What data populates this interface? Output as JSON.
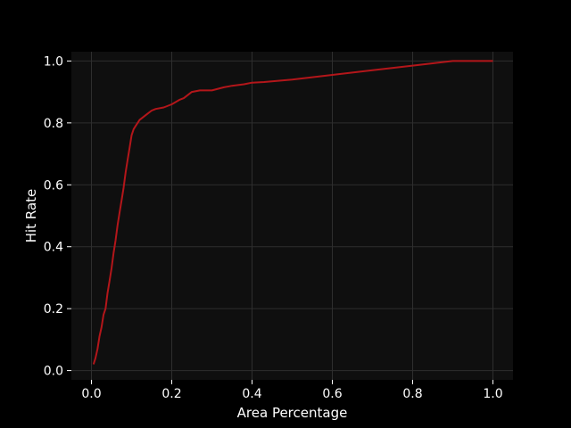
{
  "chart_data": {
    "type": "line",
    "title": "",
    "xlabel": "Area Percentage",
    "ylabel": "Hit Rate",
    "xlim": [
      -0.05,
      1.05
    ],
    "ylim": [
      -0.03,
      1.03
    ],
    "grid": true,
    "legend": "none",
    "x_ticks": [
      0.0,
      0.2,
      0.4,
      0.6,
      0.8,
      1.0
    ],
    "x_tick_labels": [
      "0.0",
      "0.2",
      "0.4",
      "0.6",
      "0.8",
      "1.0"
    ],
    "y_ticks": [
      0.0,
      0.2,
      0.4,
      0.6,
      0.8,
      1.0
    ],
    "y_tick_labels": [
      "0.0",
      "0.2",
      "0.4",
      "0.6",
      "0.8",
      "1.0"
    ],
    "colors": {
      "background": "#000000",
      "plot_background": "#0f0f0f",
      "grid": "#2e2e2e",
      "text": "#ffffff",
      "line": "#b3161a"
    },
    "series": [
      {
        "x": [
          0.005,
          0.01,
          0.015,
          0.02,
          0.025,
          0.03,
          0.035,
          0.04,
          0.045,
          0.05,
          0.055,
          0.06,
          0.065,
          0.07,
          0.075,
          0.08,
          0.085,
          0.09,
          0.095,
          0.1,
          0.105,
          0.11,
          0.115,
          0.12,
          0.13,
          0.14,
          0.15,
          0.16,
          0.18,
          0.2,
          0.22,
          0.23,
          0.25,
          0.27,
          0.3,
          0.33,
          0.35,
          0.38,
          0.4,
          0.43,
          0.5,
          0.6,
          0.7,
          0.8,
          0.9,
          0.925,
          1.0
        ],
        "y": [
          0.02,
          0.04,
          0.07,
          0.11,
          0.14,
          0.18,
          0.2,
          0.25,
          0.29,
          0.33,
          0.38,
          0.42,
          0.47,
          0.51,
          0.55,
          0.59,
          0.64,
          0.68,
          0.72,
          0.76,
          0.78,
          0.79,
          0.8,
          0.81,
          0.82,
          0.83,
          0.84,
          0.845,
          0.85,
          0.86,
          0.875,
          0.88,
          0.9,
          0.905,
          0.905,
          0.915,
          0.92,
          0.925,
          0.93,
          0.932,
          0.94,
          0.955,
          0.97,
          0.985,
          1.0,
          1.0,
          1.0
        ]
      }
    ]
  }
}
